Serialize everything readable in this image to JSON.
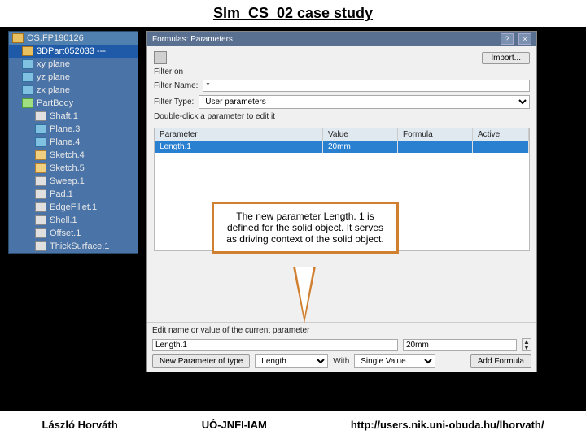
{
  "slide": {
    "title": "SIm_CS_02 case study"
  },
  "footer": {
    "author": "László Horváth",
    "org": "UÓ-JNFI-IAM",
    "url": "http://users.nik.uni-obuda.hu/lhorvath/"
  },
  "callout": {
    "text": "The new parameter Length. 1 is defined for the solid object. It serves as driving context of the solid object."
  },
  "tree": {
    "root": "OS.FP190126",
    "selected": "3DPart052033 ---",
    "items": [
      {
        "label": "xy plane",
        "icon": "plane"
      },
      {
        "label": "yz plane",
        "icon": "plane"
      },
      {
        "label": "zx plane",
        "icon": "plane"
      },
      {
        "label": "PartBody",
        "icon": "body"
      },
      {
        "label": "Shaft.1",
        "icon": "feat",
        "indent": 2
      },
      {
        "label": "Plane.3",
        "icon": "plane",
        "indent": 2
      },
      {
        "label": "Plane.4",
        "icon": "plane",
        "indent": 2
      },
      {
        "label": "Sketch.4",
        "icon": "sk",
        "indent": 2
      },
      {
        "label": "Sketch.5",
        "icon": "sk",
        "indent": 2
      },
      {
        "label": "Sweep.1",
        "icon": "feat",
        "indent": 2
      },
      {
        "label": "Pad.1",
        "icon": "feat",
        "indent": 2
      },
      {
        "label": "EdgeFillet.1",
        "icon": "feat",
        "indent": 2
      },
      {
        "label": "Shell.1",
        "icon": "feat",
        "indent": 2
      },
      {
        "label": "Offset.1",
        "icon": "feat",
        "indent": 2
      },
      {
        "label": "ThickSurface.1",
        "icon": "feat",
        "indent": 2
      }
    ]
  },
  "dialog": {
    "title": "Formulas: Parameters",
    "import_btn": "Import...",
    "filter_on_label": "Filter on",
    "filter_name_label": "Filter Name:",
    "filter_name_value": "*",
    "filter_type_label": "Filter Type:",
    "filter_type_value": "User parameters",
    "hint": "Double-click a parameter to edit it",
    "columns": {
      "param": "Parameter",
      "value": "Value",
      "formula": "Formula",
      "active": "Active"
    },
    "row": {
      "param": "Length.1",
      "value": "20mm",
      "formula": "",
      "active": ""
    },
    "edit_label": "Edit name or value of the current parameter",
    "edit_name": "Length.1",
    "edit_value": "20mm",
    "new_type_btn": "New Parameter of type",
    "new_type_value": "Length",
    "with_label": "With",
    "with_value": "Single Value",
    "add_formula_btn": "Add Formula"
  },
  "colors": {
    "tree_bg": "#4a74a8",
    "callout_border": "#d08030",
    "dlg_title": "#5a7090",
    "row_sel": "#2a80d0"
  }
}
